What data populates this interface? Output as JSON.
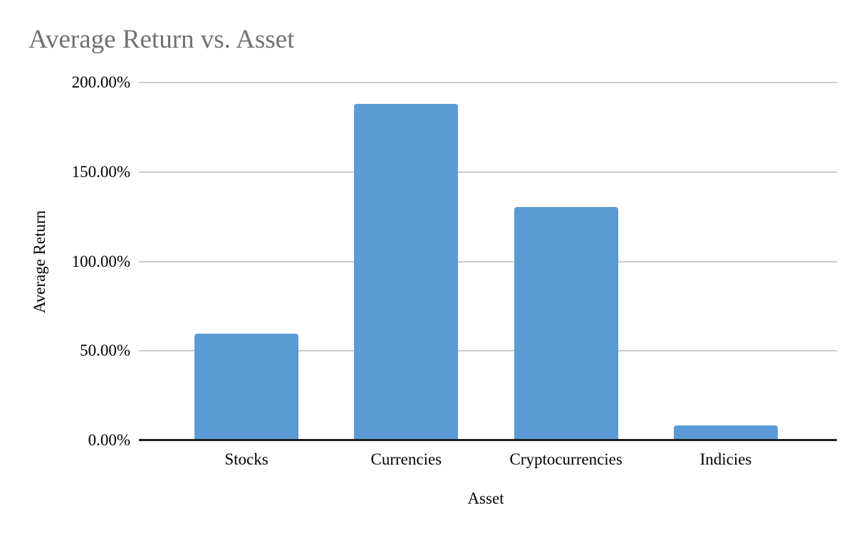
{
  "chart_data": {
    "type": "bar",
    "title": "Average Return vs. Asset",
    "xlabel": "Asset",
    "ylabel": "Average Return",
    "categories": [
      "Stocks",
      "Currencies",
      "Cryptocurrencies",
      "Indicies"
    ],
    "values": [
      59.5,
      188,
      130.5,
      8.5
    ],
    "value_unit": "percent",
    "ylim": [
      0,
      200
    ],
    "yticks": [
      {
        "value": 200,
        "label": "200.00%"
      },
      {
        "value": 150,
        "label": "150.00%"
      },
      {
        "value": 100,
        "label": "100.00%"
      },
      {
        "value": 50,
        "label": "50.00%"
      },
      {
        "value": 0,
        "label": "0.00%"
      }
    ],
    "grid": true,
    "legend": "none",
    "colors": {
      "bar": "#5b9bd5",
      "gridline": "#cccccc",
      "axis_line": "#1f1f1f",
      "title_text": "#717171",
      "label_text": "#000000",
      "background": "#ffffff"
    }
  }
}
